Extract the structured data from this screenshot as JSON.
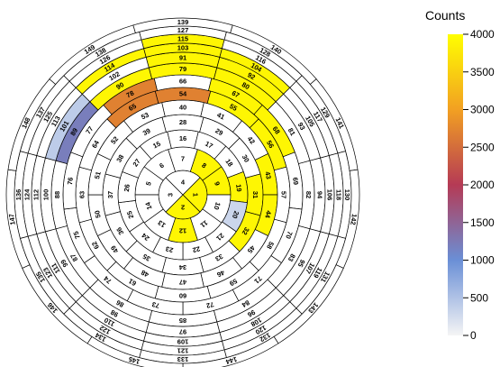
{
  "chart_data": {
    "type": "heatmap",
    "layout": "polar",
    "colorbar": {
      "title": "Counts",
      "range": [
        0,
        4000
      ],
      "ticks": [
        "4000",
        "3500",
        "3000",
        "2500",
        "2000",
        "1500",
        "1000",
        "500",
        "0"
      ],
      "tick_values": [
        4000,
        3500,
        3000,
        2500,
        2000,
        1500,
        1000,
        500,
        0
      ],
      "colors": [
        "#f5f5f5",
        "#6a8fd6",
        "#b53a55",
        "#f2a022",
        "#ffff00"
      ]
    },
    "rings": [
      {
        "numbers": [
          1,
          2,
          3,
          4
        ],
        "start": 3,
        "values": [
          3900,
          3900,
          0,
          0
        ]
      },
      {
        "numbers": [
          5,
          6,
          7,
          8,
          9,
          10,
          11,
          12,
          13,
          14
        ],
        "start": 2,
        "values": [
          0,
          0,
          0,
          3900,
          3900,
          0,
          0,
          3900,
          0,
          0
        ]
      },
      {
        "numbers": [
          15,
          16,
          17,
          18,
          19,
          20,
          21,
          22,
          23,
          24,
          25,
          26,
          27
        ],
        "start": 1,
        "values": [
          0,
          0,
          0,
          0,
          3900,
          300,
          0,
          0,
          0,
          0,
          0,
          0,
          0
        ]
      },
      {
        "numbers": [
          28,
          29,
          30,
          31,
          32,
          33,
          34,
          35,
          36,
          37,
          38,
          39
        ],
        "start": 0,
        "values": [
          0,
          0,
          0,
          3900,
          3900,
          0,
          0,
          0,
          0,
          0,
          0,
          0
        ]
      },
      {
        "numbers": [
          40,
          41,
          42,
          43,
          44,
          45,
          46,
          47,
          48,
          49,
          50,
          51,
          52,
          53
        ],
        "start": 0,
        "values": [
          0,
          0,
          0,
          3900,
          3900,
          0,
          0,
          0,
          0,
          0,
          0,
          0,
          0,
          0
        ]
      },
      {
        "numbers": [
          54,
          55,
          56,
          57,
          58,
          59,
          60,
          61,
          62,
          63,
          64,
          65
        ],
        "start": 0,
        "values": [
          2700,
          3900,
          3900,
          0,
          0,
          0,
          0,
          0,
          0,
          0,
          0,
          2700
        ]
      },
      {
        "numbers": [
          66,
          67,
          68,
          69,
          70,
          71,
          72,
          73,
          74,
          75,
          76,
          77,
          78
        ],
        "start": 0,
        "values": [
          0,
          3900,
          3900,
          0,
          0,
          0,
          0,
          0,
          0,
          0,
          0,
          0,
          2700
        ]
      },
      {
        "numbers": [
          79,
          80,
          81,
          82,
          83,
          84,
          85,
          86,
          87,
          88,
          89,
          90
        ],
        "start": 0,
        "values": [
          3900,
          3900,
          0,
          0,
          0,
          0,
          0,
          0,
          0,
          0,
          1200,
          3900
        ]
      },
      {
        "numbers": [
          91,
          92,
          93,
          94,
          95,
          96,
          97,
          98,
          99,
          100,
          101,
          102
        ],
        "start": 0,
        "values": [
          3900,
          3900,
          0,
          0,
          0,
          0,
          0,
          0,
          0,
          0,
          400,
          0
        ]
      },
      {
        "numbers": [
          103,
          104,
          105,
          106,
          107,
          108,
          109,
          110,
          111,
          112,
          113,
          114
        ],
        "start": 0,
        "values": [
          3900,
          3900,
          0,
          0,
          0,
          0,
          0,
          0,
          0,
          0,
          0,
          3900
        ]
      },
      {
        "numbers": [
          115,
          116,
          117,
          118,
          119,
          120,
          121,
          122,
          123,
          124,
          125,
          126
        ],
        "start": 0,
        "values": [
          3900,
          0,
          0,
          0,
          0,
          0,
          0,
          0,
          0,
          0,
          0,
          0
        ]
      },
      {
        "numbers": [
          127,
          128,
          129,
          130,
          131,
          132,
          133,
          134,
          135,
          136,
          137,
          138
        ],
        "start": 0,
        "values": [
          0,
          0,
          0,
          0,
          0,
          0,
          0,
          0,
          0,
          0,
          0,
          0
        ]
      },
      {
        "numbers": [
          139,
          140,
          141,
          142,
          143,
          144,
          145,
          146,
          147,
          148,
          149
        ],
        "start": 0,
        "values": [
          0,
          0,
          0,
          0,
          0,
          0,
          0,
          0,
          0,
          0,
          0
        ]
      }
    ]
  }
}
